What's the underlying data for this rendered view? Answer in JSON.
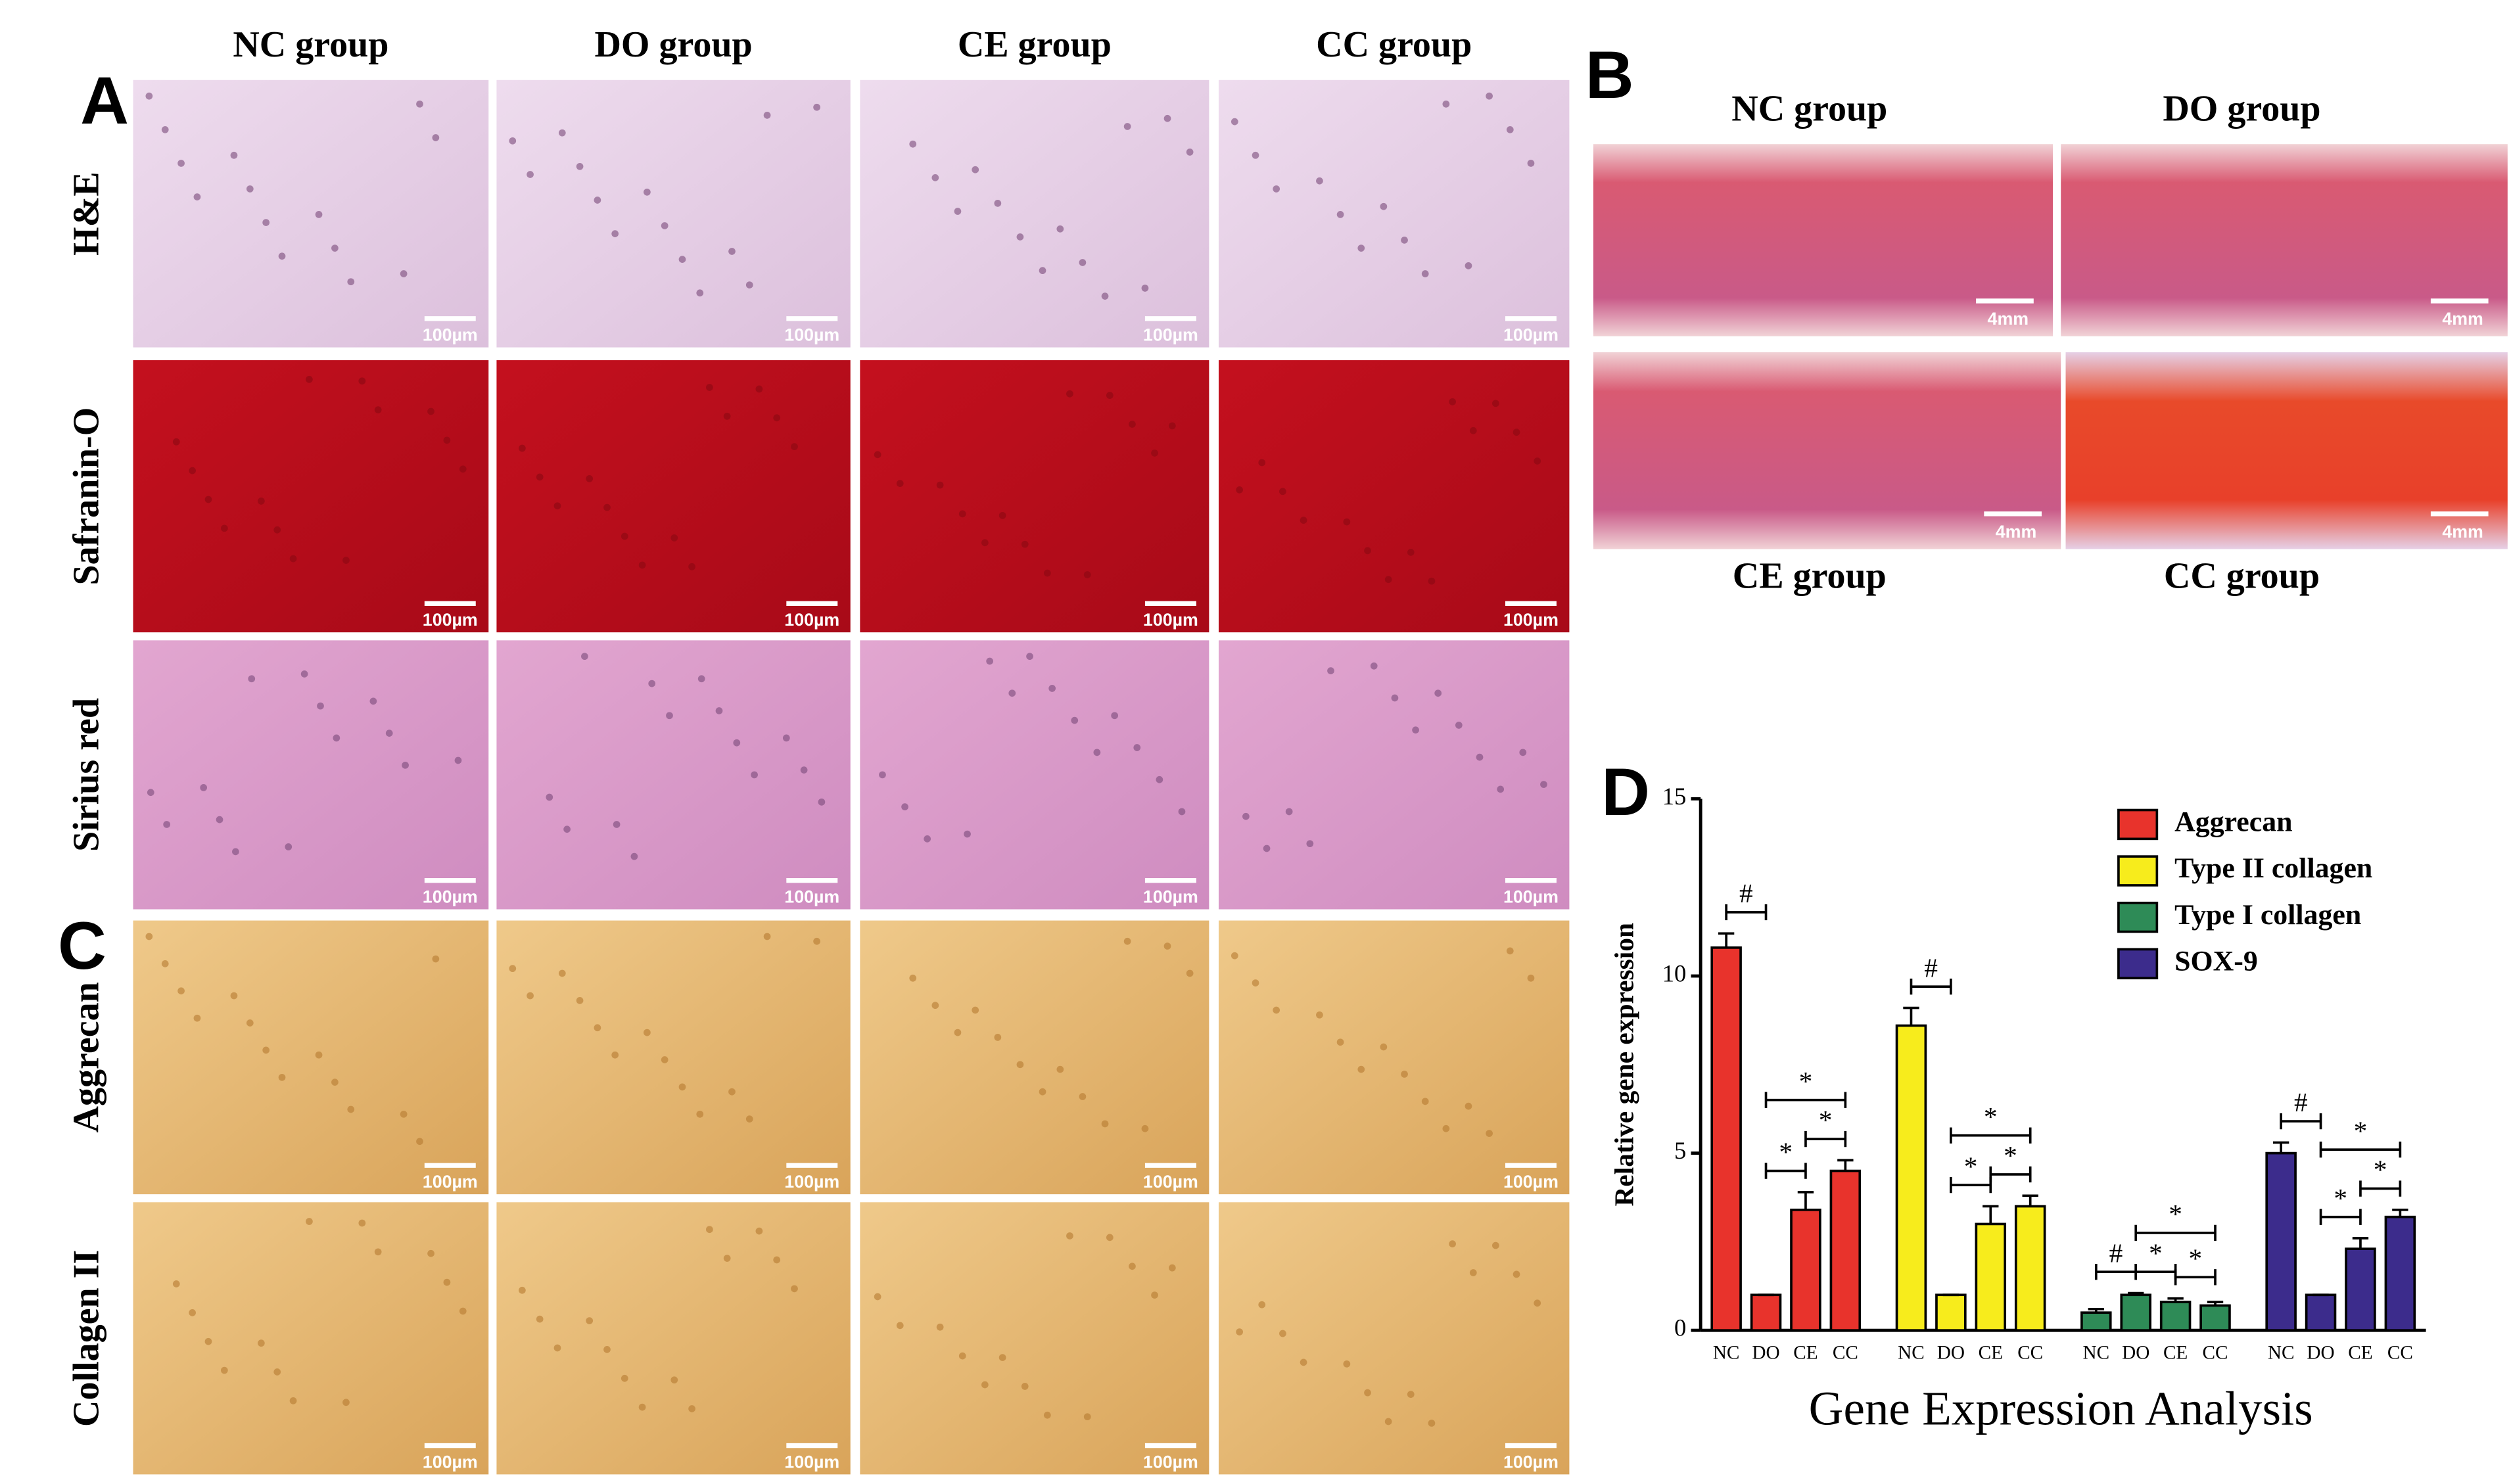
{
  "panel_a": {
    "letter": "A",
    "columns": [
      "NC group",
      "DO group",
      "CE group",
      "CC group"
    ],
    "rows": [
      "H&E",
      "Safranin-O",
      "Sirius red"
    ],
    "scale_bar": "100µm"
  },
  "panel_b": {
    "letter": "B",
    "top_groups": [
      "NC group",
      "DO group"
    ],
    "bottom_groups": [
      "CE group",
      "CC group"
    ],
    "scale_bar": "4mm"
  },
  "panel_c": {
    "letter": "C",
    "rows": [
      "Aggrecan",
      "Collagen II"
    ],
    "scale_bar": "100µm"
  },
  "chart_data": {
    "type": "bar",
    "letter": "D",
    "x_label": "Gene Expression Analysis",
    "y_label": "Relative gene expression",
    "categories": [
      "NC",
      "DO",
      "CE",
      "CC"
    ],
    "ylim": [
      0,
      15
    ],
    "yticks": [
      0,
      5,
      10,
      15
    ],
    "series": [
      {
        "name": "Aggrecan",
        "color": "#e8332c",
        "values": [
          10.8,
          1,
          3.4,
          4.5
        ],
        "errors": [
          0.4,
          0,
          0.5,
          0.3
        ],
        "significance": [
          {
            "text": "#",
            "from": 0,
            "to": 1
          },
          {
            "text": "*",
            "from": 1,
            "to": 2
          },
          {
            "text": "*",
            "from": 2,
            "to": 3
          },
          {
            "text": "*",
            "from": 1,
            "to": 3
          }
        ]
      },
      {
        "name": "Type II collagen",
        "color": "#f7ec1c",
        "values": [
          8.6,
          1,
          3.0,
          3.5
        ],
        "errors": [
          0.5,
          0,
          0.5,
          0.3
        ],
        "significance": [
          {
            "text": "#",
            "from": 0,
            "to": 1
          },
          {
            "text": "*",
            "from": 1,
            "to": 2
          },
          {
            "text": "*",
            "from": 2,
            "to": 3
          },
          {
            "text": "*",
            "from": 1,
            "to": 3
          }
        ]
      },
      {
        "name": "Type I collagen",
        "color": "#2e8b57",
        "values": [
          0.5,
          1,
          0.8,
          0.7
        ],
        "errors": [
          0.1,
          0.05,
          0.1,
          0.1
        ],
        "significance": [
          {
            "text": "#",
            "from": 0,
            "to": 1
          },
          {
            "text": "*",
            "from": 2,
            "to": 3
          },
          {
            "text": "*",
            "from": 1,
            "to": 2
          },
          {
            "text": "*",
            "from": 1,
            "to": 3
          }
        ]
      },
      {
        "name": "SOX-9",
        "color": "#3c2c8c",
        "values": [
          5.0,
          1,
          2.3,
          3.2
        ],
        "errors": [
          0.3,
          0,
          0.3,
          0.2
        ],
        "significance": [
          {
            "text": "#",
            "from": 0,
            "to": 1
          },
          {
            "text": "*",
            "from": 1,
            "to": 2
          },
          {
            "text": "*",
            "from": 2,
            "to": 3
          },
          {
            "text": "*",
            "from": 1,
            "to": 3
          }
        ]
      }
    ]
  }
}
